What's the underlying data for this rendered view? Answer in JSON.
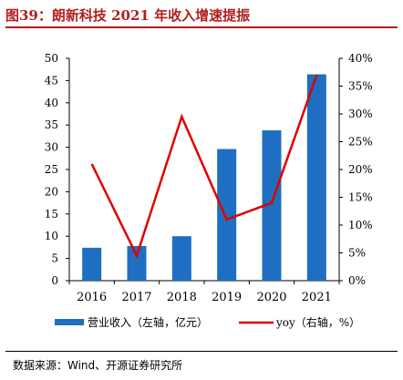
{
  "figure": {
    "title": "图39：朗新科技 2021 年收入增速提振",
    "source": "数据来源：Wind、开源证券研究所"
  },
  "chart_data": {
    "type": "bar+line",
    "categories": [
      "2016",
      "2017",
      "2018",
      "2019",
      "2020",
      "2021"
    ],
    "series": [
      {
        "name": "营业收入（左轴，亿元）",
        "type": "bar",
        "axis": "left",
        "values": [
          7.4,
          7.8,
          10.0,
          29.6,
          33.8,
          46.4
        ]
      },
      {
        "name": "yoy（右轴，%）",
        "type": "line",
        "axis": "right",
        "values": [
          21.0,
          4.5,
          29.5,
          11.0,
          14.0,
          37.0
        ]
      }
    ],
    "left_axis": {
      "ylim": [
        0,
        50
      ],
      "ticks": [
        "0",
        "5",
        "10",
        "15",
        "20",
        "25",
        "30",
        "35",
        "40",
        "45",
        "50"
      ]
    },
    "right_axis": {
      "ylim": [
        0,
        40
      ],
      "ticks": [
        "0%",
        "5%",
        "10%",
        "15%",
        "20%",
        "25%",
        "30%",
        "35%",
        "40%"
      ]
    },
    "colors": {
      "bar": "#1e6fc2",
      "line": "#e00000",
      "title": "#b0201e"
    },
    "legend_position": "bottom",
    "grid": false
  }
}
